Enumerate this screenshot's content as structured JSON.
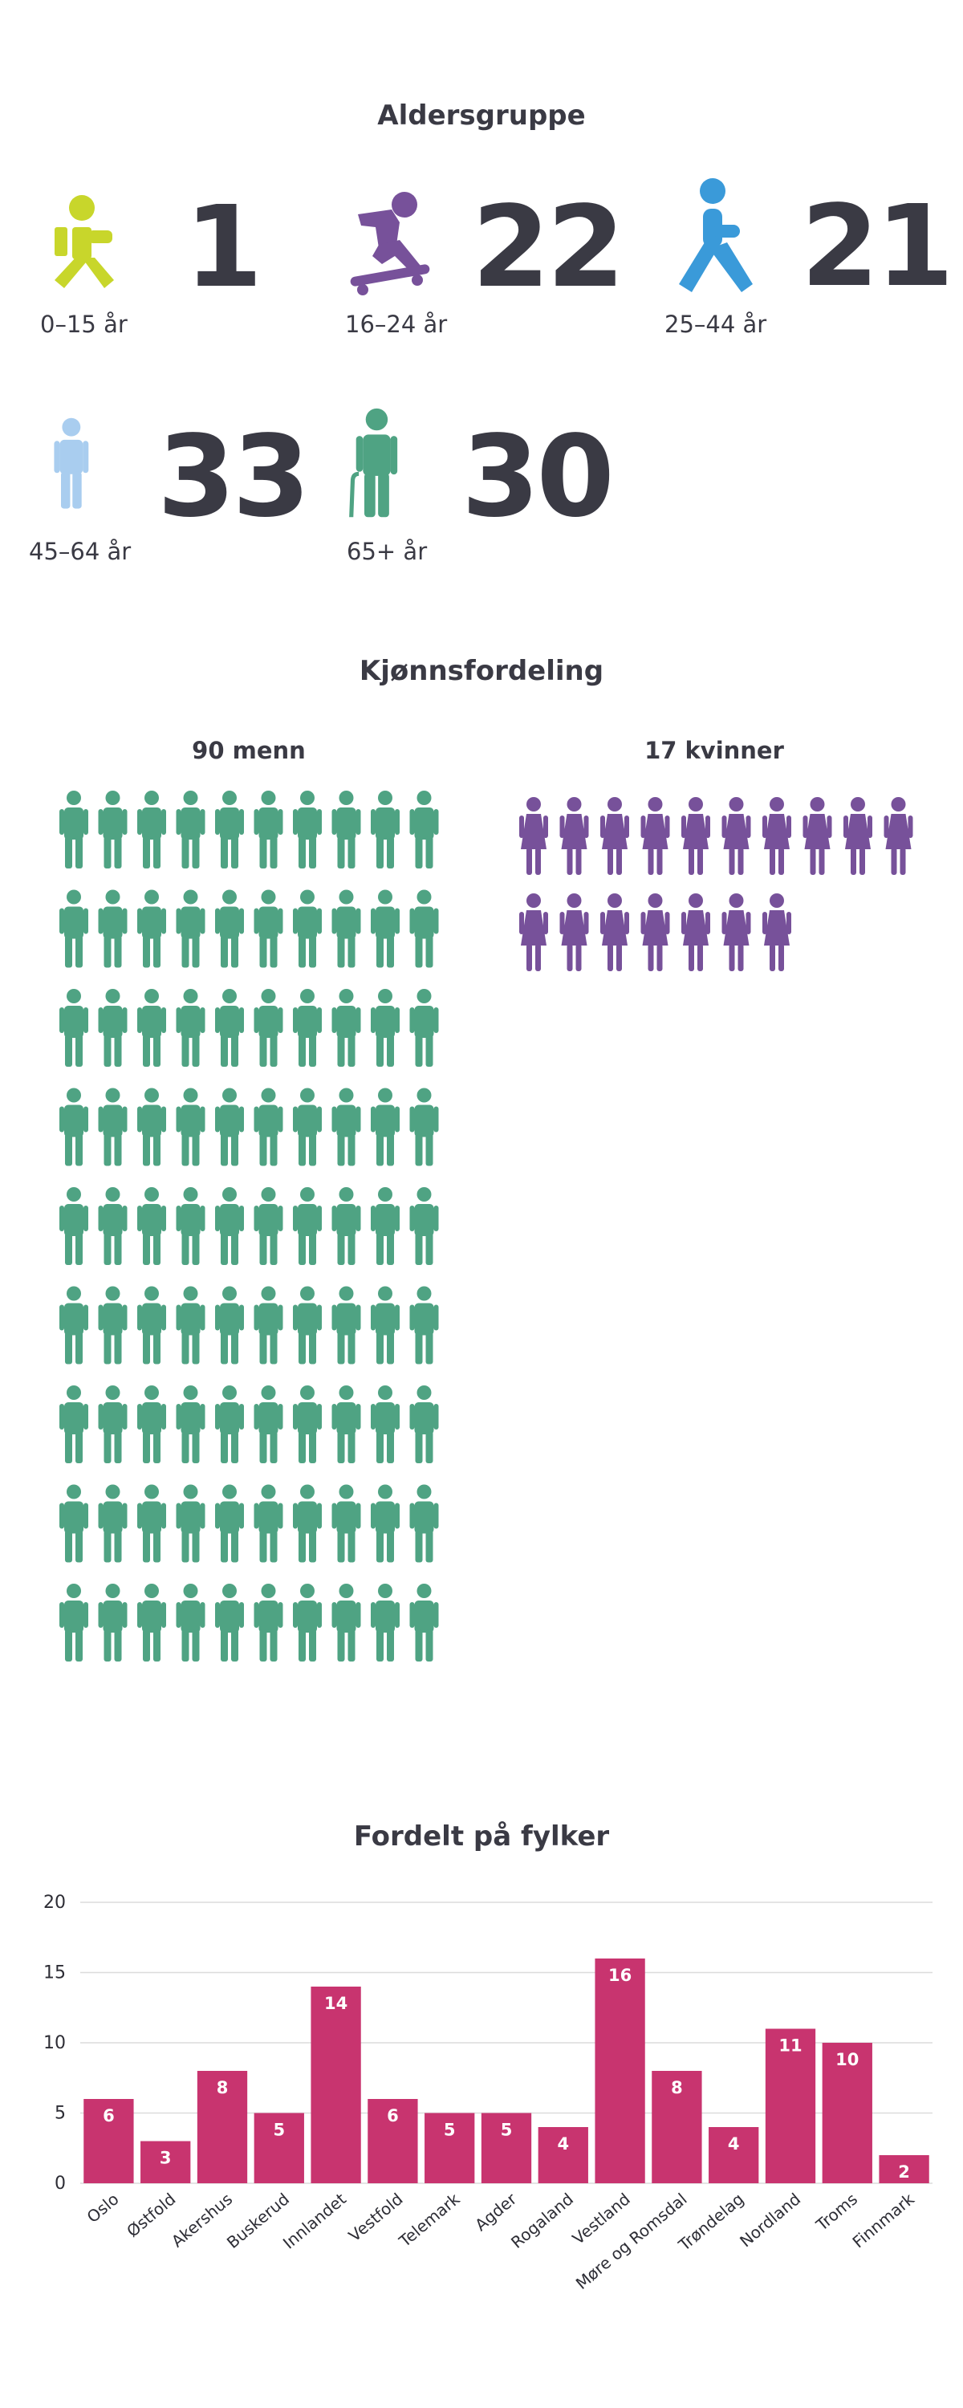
{
  "age": {
    "title": "Aldersgruppe",
    "groups": [
      {
        "label": "0–15 år",
        "count": "1",
        "icon": "child-sitting-icon",
        "color": "#c8d62b"
      },
      {
        "label": "16–24 år",
        "count": "22",
        "icon": "skateboarder-icon",
        "color": "#77519a"
      },
      {
        "label": "25–44 år",
        "count": "21",
        "icon": "walking-person-icon",
        "color": "#3a9ad9"
      },
      {
        "label": "45–64 år",
        "count": "33",
        "icon": "standing-person-icon",
        "color": "#a9cdef"
      },
      {
        "label": "65+ år",
        "count": "30",
        "icon": "elderly-person-with-cane-icon",
        "color": "#4fa383"
      }
    ]
  },
  "gender": {
    "title": "Kjønnsfordeling",
    "men_label": "90 menn",
    "women_label": "17 kvinner",
    "men_count": 90,
    "women_count": 17,
    "men_color": "#4fa383",
    "women_color": "#77519a"
  },
  "county": {
    "title": "Fordelt på fylker",
    "bar_color": "#c8346f"
  },
  "chart_data": {
    "type": "bar",
    "title": "Fordelt på fylker",
    "categories": [
      "Oslo",
      "Østfold",
      "Akershus",
      "Buskerud",
      "Innlandet",
      "Vestfold",
      "Telemark",
      "Agder",
      "Rogaland",
      "Vestland",
      "Møre og Romsdal",
      "Trøndelag",
      "Nordland",
      "Troms",
      "Finnmark"
    ],
    "values": [
      6,
      3,
      8,
      5,
      14,
      6,
      5,
      5,
      4,
      16,
      8,
      4,
      11,
      10,
      2
    ],
    "ylim": [
      0,
      20
    ],
    "yticks": [
      0,
      5,
      10,
      15,
      20
    ],
    "grid": true,
    "data_labels": true
  }
}
